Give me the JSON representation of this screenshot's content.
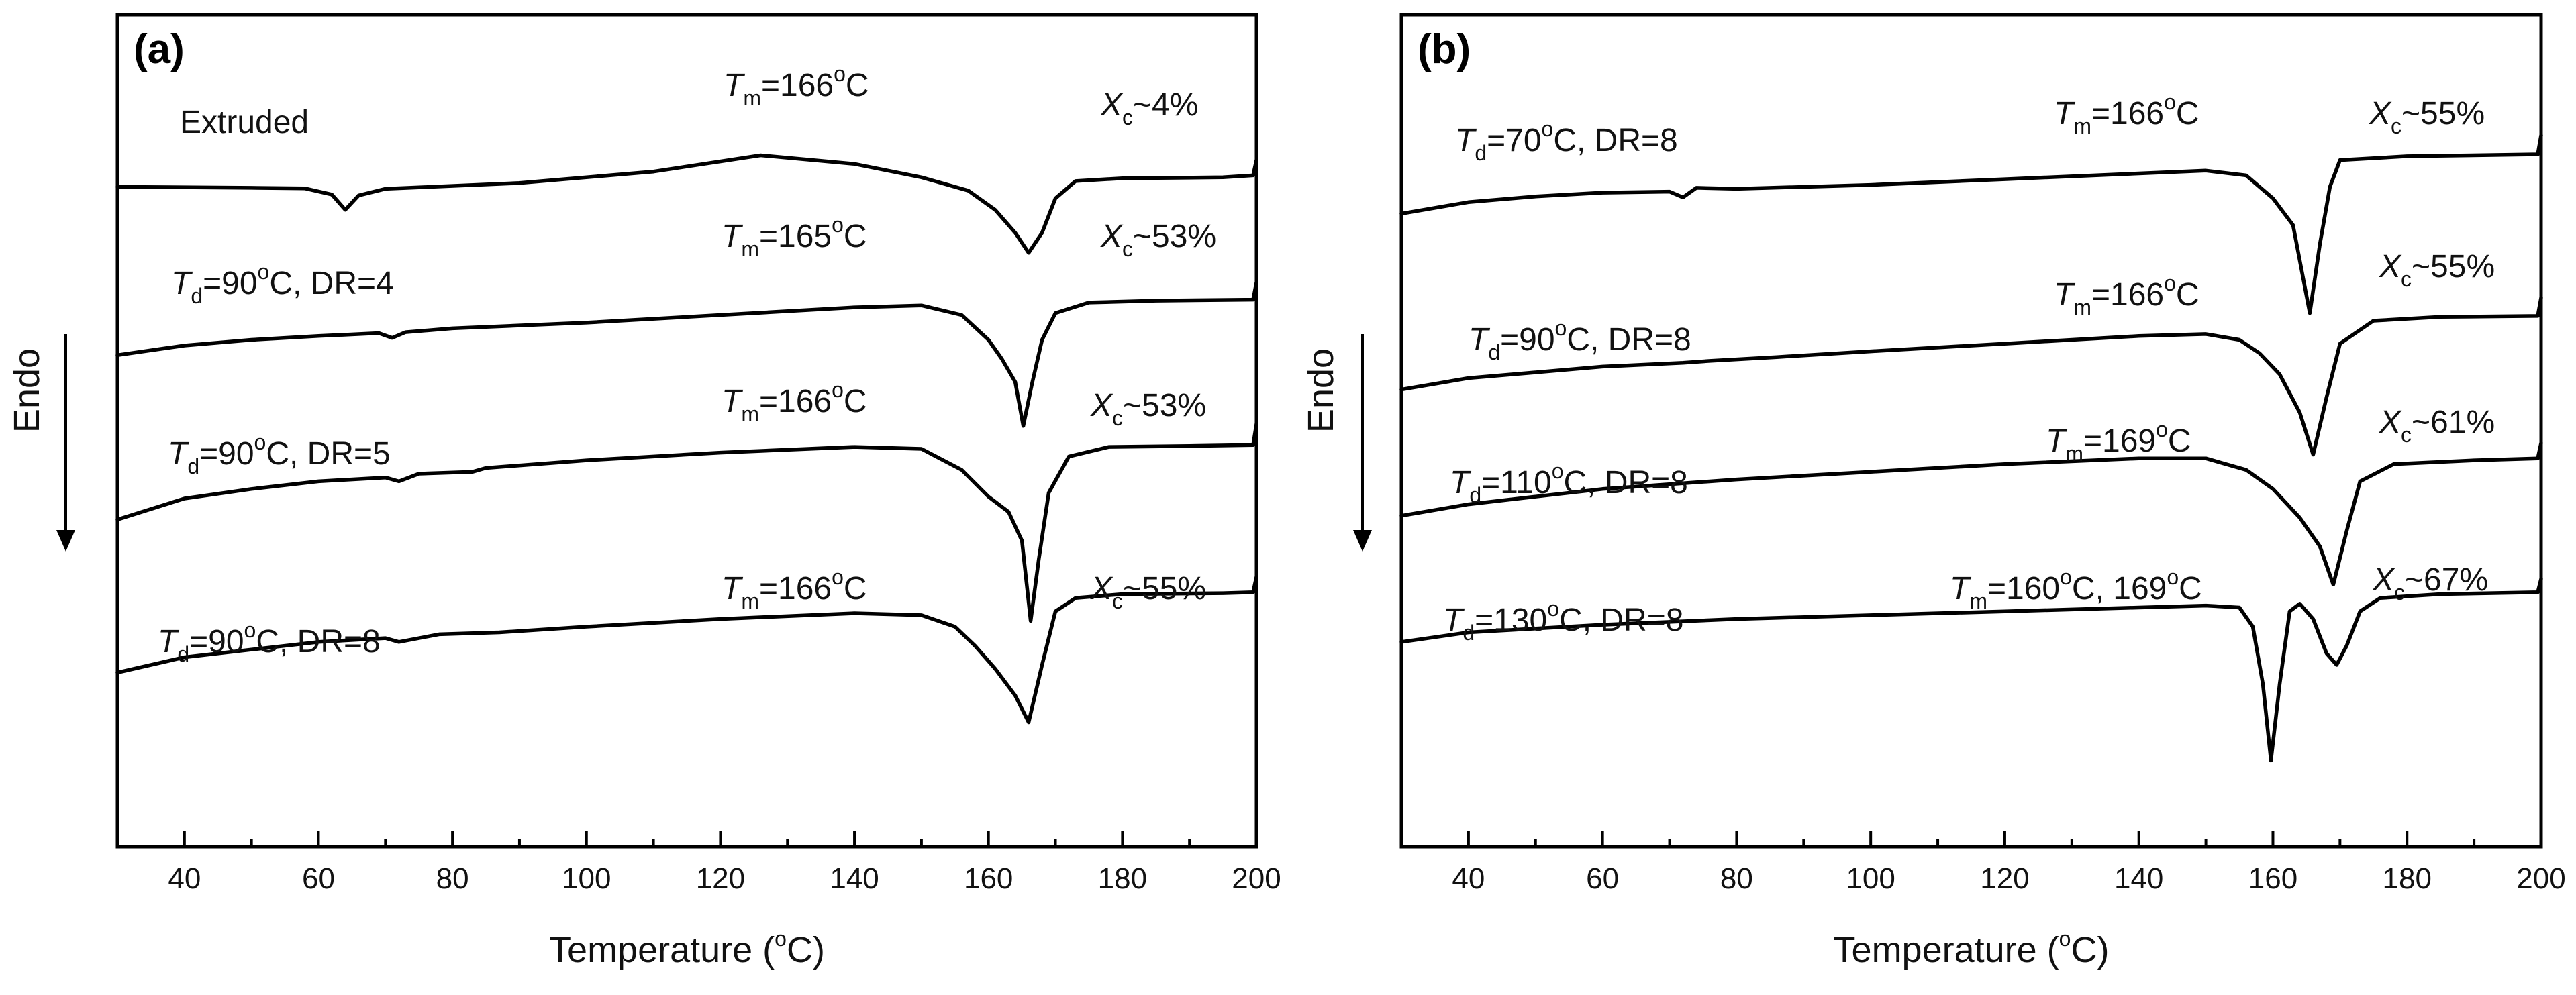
{
  "figure": {
    "x_axis_title": "Temperature (",
    "x_axis_unit_sup": "o",
    "x_axis_unit": "C)",
    "y_axis_title": "Endo",
    "arrow_direction": "down"
  },
  "chart_data": [
    {
      "panel": "(a)",
      "type": "line",
      "xlabel": "Temperature (oC)",
      "ylabel": "Endo",
      "xlim": [
        30,
        200
      ],
      "xticks": [
        40,
        60,
        80,
        100,
        120,
        140,
        160,
        180,
        200
      ],
      "grid": false,
      "series": [
        {
          "name": "Extruded",
          "label_parts": [
            {
              "t": "Extruded"
            }
          ],
          "tm": {
            "sym": "T",
            "sub": "m",
            "pre": "=166",
            "sup": "o",
            "post": "C"
          },
          "xc": {
            "sym": "X",
            "sub": "c",
            "post": "~4%"
          },
          "points": [
            [
              30,
              0.9
            ],
            [
              50,
              0.905
            ],
            [
              58,
              0.908
            ],
            [
              62,
              0.94
            ],
            [
              64,
              1.02
            ],
            [
              66,
              0.945
            ],
            [
              70,
              0.91
            ],
            [
              90,
              0.88
            ],
            [
              110,
              0.82
            ],
            [
              126,
              0.735
            ],
            [
              140,
              0.78
            ],
            [
              150,
              0.85
            ],
            [
              157,
              0.92
            ],
            [
              161,
              1.02
            ],
            [
              164,
              1.14
            ],
            [
              166,
              1.245
            ],
            [
              168,
              1.14
            ],
            [
              170,
              0.96
            ],
            [
              173,
              0.87
            ],
            [
              180,
              0.855
            ],
            [
              195,
              0.85
            ],
            [
              199.5,
              0.84
            ],
            [
              200,
              0.76
            ]
          ]
        },
        {
          "name": "Td=90oC, DR=4",
          "label_parts": [
            {
              "sym": "T",
              "sub": "d",
              "pre": "=90",
              "sup": "o",
              "post": "C, DR=4"
            }
          ],
          "tm": {
            "sym": "T",
            "sub": "m",
            "pre": "=165",
            "sup": "o",
            "post": "C"
          },
          "xc": {
            "sym": "X",
            "sub": "c",
            "post": "~53%"
          },
          "points": [
            [
              30,
              1.78
            ],
            [
              40,
              1.73
            ],
            [
              50,
              1.7
            ],
            [
              60,
              1.68
            ],
            [
              69,
              1.665
            ],
            [
              71,
              1.69
            ],
            [
              73,
              1.66
            ],
            [
              80,
              1.64
            ],
            [
              100,
              1.61
            ],
            [
              120,
              1.57
            ],
            [
              140,
              1.53
            ],
            [
              150,
              1.52
            ],
            [
              156,
              1.57
            ],
            [
              160,
              1.7
            ],
            [
              162,
              1.8
            ],
            [
              164,
              1.92
            ],
            [
              165.2,
              2.15
            ],
            [
              166.5,
              1.93
            ],
            [
              168,
              1.7
            ],
            [
              170,
              1.56
            ],
            [
              175,
              1.505
            ],
            [
              185,
              1.495
            ],
            [
              199.5,
              1.49
            ],
            [
              200,
              1.4
            ]
          ]
        },
        {
          "name": "Td=90oC, DR=5",
          "label_parts": [
            {
              "sym": "T",
              "sub": "d",
              "pre": "=90",
              "sup": "o",
              "post": "C, DR=5"
            }
          ],
          "tm": {
            "sym": "T",
            "sub": "m",
            "pre": "=166",
            "sup": "o",
            "post": "C"
          },
          "xc": {
            "sym": "X",
            "sub": "c",
            "post": "~53%"
          },
          "points": [
            [
              30,
              2.64
            ],
            [
              40,
              2.53
            ],
            [
              50,
              2.48
            ],
            [
              60,
              2.44
            ],
            [
              70,
              2.42
            ],
            [
              72,
              2.44
            ],
            [
              75,
              2.4
            ],
            [
              83,
              2.39
            ],
            [
              85,
              2.37
            ],
            [
              100,
              2.33
            ],
            [
              120,
              2.29
            ],
            [
              140,
              2.26
            ],
            [
              150,
              2.27
            ],
            [
              156,
              2.38
            ],
            [
              160,
              2.52
            ],
            [
              163,
              2.6
            ],
            [
              165,
              2.75
            ],
            [
              166.3,
              3.17
            ],
            [
              167.5,
              2.85
            ],
            [
              169,
              2.5
            ],
            [
              172,
              2.31
            ],
            [
              178,
              2.26
            ],
            [
              190,
              2.255
            ],
            [
              199.5,
              2.25
            ],
            [
              200,
              2.14
            ]
          ]
        },
        {
          "name": "Td=90oC, DR=8",
          "label_parts": [
            {
              "sym": "T",
              "sub": "d",
              "pre": "=90",
              "sup": "o",
              "post": "C, DR=8"
            }
          ],
          "tm": {
            "sym": "T",
            "sub": "m",
            "pre": "=166",
            "sup": "o",
            "post": "C"
          },
          "xc": {
            "sym": "X",
            "sub": "c",
            "post": "~55%"
          },
          "points": [
            [
              30,
              3.44
            ],
            [
              40,
              3.36
            ],
            [
              50,
              3.32
            ],
            [
              60,
              3.28
            ],
            [
              70,
              3.26
            ],
            [
              72,
              3.28
            ],
            [
              78,
              3.24
            ],
            [
              87,
              3.23
            ],
            [
              100,
              3.2
            ],
            [
              120,
              3.16
            ],
            [
              140,
              3.13
            ],
            [
              150,
              3.14
            ],
            [
              155,
              3.2
            ],
            [
              158,
              3.3
            ],
            [
              161,
              3.42
            ],
            [
              164,
              3.56
            ],
            [
              166,
              3.7
            ],
            [
              168,
              3.4
            ],
            [
              170,
              3.12
            ],
            [
              173,
              3.05
            ],
            [
              180,
              3.03
            ],
            [
              195,
              3.025
            ],
            [
              199.5,
              3.02
            ],
            [
              200,
              2.94
            ]
          ]
        }
      ]
    },
    {
      "panel": "(b)",
      "type": "line",
      "xlabel": "Temperature (oC)",
      "ylabel": "Endo",
      "xlim": [
        30,
        200
      ],
      "xticks": [
        40,
        60,
        80,
        100,
        120,
        140,
        160,
        180,
        200
      ],
      "grid": false,
      "series": [
        {
          "name": "Td=70oC, DR=8",
          "label_parts": [
            {
              "sym": "T",
              "sub": "d",
              "pre": "=70",
              "sup": "o",
              "post": "C, DR=8"
            }
          ],
          "tm": {
            "sym": "T",
            "sub": "m",
            "pre": "=166",
            "sup": "o",
            "post": "C"
          },
          "xc": {
            "sym": "X",
            "sub": "c",
            "post": "~55%"
          },
          "points": [
            [
              30,
              1.04
            ],
            [
              40,
              0.98
            ],
            [
              50,
              0.95
            ],
            [
              60,
              0.93
            ],
            [
              70,
              0.925
            ],
            [
              72,
              0.955
            ],
            [
              74,
              0.905
            ],
            [
              80,
              0.91
            ],
            [
              100,
              0.89
            ],
            [
              120,
              0.86
            ],
            [
              140,
              0.83
            ],
            [
              150,
              0.815
            ],
            [
              156,
              0.84
            ],
            [
              160,
              0.96
            ],
            [
              163,
              1.1
            ],
            [
              165.5,
              1.56
            ],
            [
              167,
              1.2
            ],
            [
              168.5,
              0.9
            ],
            [
              170,
              0.76
            ],
            [
              180,
              0.74
            ],
            [
              199.5,
              0.73
            ],
            [
              200,
              0.63
            ]
          ]
        },
        {
          "name": "Td=90oC, DR=8",
          "label_parts": [
            {
              "sym": "T",
              "sub": "d",
              "pre": "=90",
              "sup": "o",
              "post": "C, DR=8"
            }
          ],
          "tm": {
            "sym": "T",
            "sub": "m",
            "pre": "=166",
            "sup": "o",
            "post": "C"
          },
          "xc": {
            "sym": "X",
            "sub": "c",
            "post": "~55%"
          },
          "points": [
            [
              30,
              1.96
            ],
            [
              40,
              1.9
            ],
            [
              50,
              1.87
            ],
            [
              60,
              1.84
            ],
            [
              72,
              1.82
            ],
            [
              76,
              1.81
            ],
            [
              86,
              1.79
            ],
            [
              100,
              1.76
            ],
            [
              120,
              1.72
            ],
            [
              140,
              1.68
            ],
            [
              150,
              1.67
            ],
            [
              155,
              1.7
            ],
            [
              158,
              1.77
            ],
            [
              161,
              1.88
            ],
            [
              164,
              2.08
            ],
            [
              166,
              2.3
            ],
            [
              168,
              2.0
            ],
            [
              170,
              1.72
            ],
            [
              175,
              1.6
            ],
            [
              185,
              1.58
            ],
            [
              199.5,
              1.575
            ],
            [
              200,
              1.48
            ]
          ]
        },
        {
          "name": "Td=110oC, DR=8",
          "label_parts": [
            {
              "sym": "T",
              "sub": "d",
              "pre": "=110",
              "sup": "o",
              "post": "C, DR=8"
            }
          ],
          "tm": {
            "sym": "T",
            "sub": "m",
            "pre": "=169",
            "sup": "o",
            "post": "C"
          },
          "xc": {
            "sym": "X",
            "sub": "c",
            "post": "~61%"
          },
          "points": [
            [
              30,
              2.62
            ],
            [
              40,
              2.56
            ],
            [
              50,
              2.52
            ],
            [
              60,
              2.48
            ],
            [
              80,
              2.43
            ],
            [
              100,
              2.39
            ],
            [
              120,
              2.35
            ],
            [
              140,
              2.32
            ],
            [
              150,
              2.32
            ],
            [
              156,
              2.38
            ],
            [
              160,
              2.48
            ],
            [
              164,
              2.63
            ],
            [
              167,
              2.78
            ],
            [
              169,
              2.98
            ],
            [
              171,
              2.7
            ],
            [
              173,
              2.44
            ],
            [
              178,
              2.35
            ],
            [
              190,
              2.33
            ],
            [
              199.5,
              2.32
            ],
            [
              200,
              2.24
            ]
          ]
        },
        {
          "name": "Td=130oC, DR=8",
          "label_parts": [
            {
              "sym": "T",
              "sub": "d",
              "pre": "=130",
              "sup": "o",
              "post": "C, DR=8"
            }
          ],
          "tm": {
            "sym": "T",
            "sub": "m",
            "pre": "=160",
            "sup": "o",
            "post": "C, 169",
            "sup2": "o",
            "post2": "C"
          },
          "xc": {
            "sym": "X",
            "sub": "c",
            "post": "~67%"
          },
          "points": [
            [
              30,
              3.28
            ],
            [
              40,
              3.23
            ],
            [
              60,
              3.19
            ],
            [
              80,
              3.16
            ],
            [
              100,
              3.14
            ],
            [
              120,
              3.12
            ],
            [
              140,
              3.1
            ],
            [
              150,
              3.09
            ],
            [
              155,
              3.1
            ],
            [
              157,
              3.2
            ],
            [
              158.5,
              3.5
            ],
            [
              159.7,
              3.9
            ],
            [
              161,
              3.5
            ],
            [
              162.5,
              3.12
            ],
            [
              164,
              3.08
            ],
            [
              166,
              3.16
            ],
            [
              168,
              3.34
            ],
            [
              169.5,
              3.4
            ],
            [
              171,
              3.3
            ],
            [
              173,
              3.12
            ],
            [
              176,
              3.05
            ],
            [
              185,
              3.03
            ],
            [
              199.5,
              3.02
            ],
            [
              200,
              2.95
            ]
          ]
        }
      ]
    }
  ]
}
